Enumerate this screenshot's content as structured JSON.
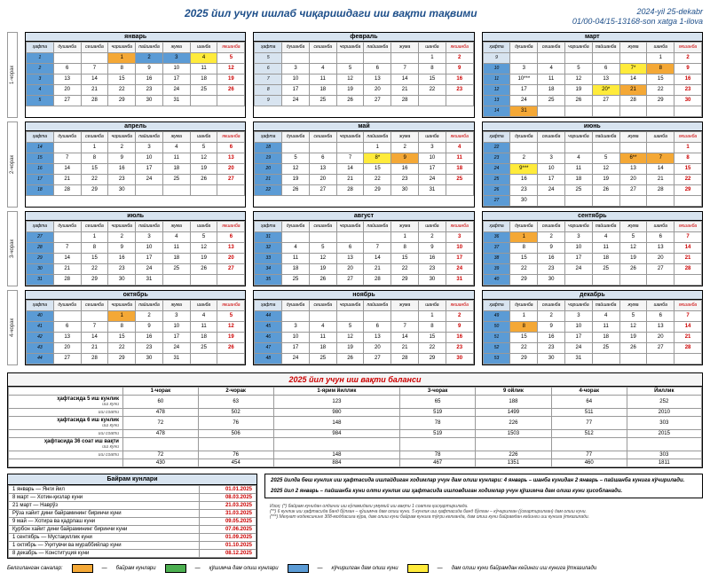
{
  "title": "2025 йил учун ишлаб чиқаришдаги иш вақти тақвими",
  "ref1": "2024-yil 25-dekabr",
  "ref2": "01/00-04/15-13168-son xatga 1-ilova",
  "weekdays": [
    "ҳафта",
    "душанба",
    "сешанба",
    "чоршанба",
    "пайшанба",
    "жума",
    "шанба",
    "якшанба"
  ],
  "q": [
    "1-чорак",
    "2-чорак",
    "3-чорак",
    "4-чорак"
  ],
  "months": [
    {
      "name": "январь",
      "weeks": [
        [
          "1",
          "",
          "",
          "1",
          "2",
          "3",
          "4",
          "5"
        ],
        [
          "2",
          "6",
          "7",
          "8",
          "9",
          "10",
          "11",
          "12"
        ],
        [
          "3",
          "13",
          "14",
          "15",
          "16",
          "17",
          "18",
          "19"
        ],
        [
          "4",
          "20",
          "21",
          "22",
          "23",
          "24",
          "25",
          "26"
        ],
        [
          "5",
          "27",
          "28",
          "29",
          "30",
          "31",
          "",
          ""
        ]
      ],
      "red": [
        "5",
        "12",
        "19",
        "26"
      ],
      "hl": {
        "1": "orange",
        "2": "blue",
        "3": "blue",
        "4": "yellow"
      },
      "wk_hl": {
        "1": "blue",
        "2": "blue",
        "3": "blue",
        "4": "blue",
        "5": "blue"
      }
    },
    {
      "name": "февраль",
      "weeks": [
        [
          "5",
          "",
          "",
          "",
          "",
          "",
          "1",
          "2"
        ],
        [
          "6",
          "3",
          "4",
          "5",
          "6",
          "7",
          "8",
          "9"
        ],
        [
          "7",
          "10",
          "11",
          "12",
          "13",
          "14",
          "15",
          "16"
        ],
        [
          "8",
          "17",
          "18",
          "19",
          "20",
          "21",
          "22",
          "23"
        ],
        [
          "9",
          "24",
          "25",
          "26",
          "27",
          "28",
          "",
          ""
        ]
      ],
      "red": [
        "2",
        "9",
        "16",
        "23"
      ],
      "hl": {},
      "wk_hl": {}
    },
    {
      "name": "март",
      "weeks": [
        [
          "9",
          "",
          "",
          "",
          "",
          "",
          "1",
          "2"
        ],
        [
          "10",
          "3",
          "4",
          "5",
          "6",
          "7*",
          "8",
          "9"
        ],
        [
          "11",
          "10***",
          "11",
          "12",
          "13",
          "14",
          "15",
          "16"
        ],
        [
          "12",
          "17",
          "18",
          "19",
          "20*",
          "21",
          "22",
          "23"
        ],
        [
          "13",
          "24",
          "25",
          "26",
          "27",
          "28",
          "29",
          "30"
        ],
        [
          "14",
          "31",
          "",
          "",
          "",
          "",
          "",
          ""
        ]
      ],
      "red": [
        "2",
        "9",
        "16",
        "23",
        "30"
      ],
      "hl": {
        "8": "orange",
        "21": "orange",
        "31": "orange",
        "7*": "yellow",
        "20*": "yellow"
      },
      "wk_hl": {
        "10": "blue",
        "11": "blue",
        "12": "blue",
        "13": "blue",
        "14": "blue"
      }
    },
    {
      "name": "апрель",
      "weeks": [
        [
          "14",
          "",
          "1",
          "2",
          "3",
          "4",
          "5",
          "6"
        ],
        [
          "15",
          "7",
          "8",
          "9",
          "10",
          "11",
          "12",
          "13"
        ],
        [
          "16",
          "14",
          "15",
          "16",
          "17",
          "18",
          "19",
          "20"
        ],
        [
          "17",
          "21",
          "22",
          "23",
          "24",
          "25",
          "26",
          "27"
        ],
        [
          "18",
          "28",
          "29",
          "30",
          "",
          "",
          "",
          ""
        ]
      ],
      "red": [
        "6",
        "13",
        "20",
        "27"
      ],
      "hl": {},
      "wk_hl": {
        "14": "blue",
        "15": "blue",
        "16": "blue",
        "17": "blue",
        "18": "blue"
      }
    },
    {
      "name": "май",
      "weeks": [
        [
          "18",
          "",
          "",
          "",
          "1",
          "2",
          "3",
          "4"
        ],
        [
          "19",
          "5",
          "6",
          "7",
          "8*",
          "9",
          "10",
          "11"
        ],
        [
          "20",
          "12",
          "13",
          "14",
          "15",
          "16",
          "17",
          "18"
        ],
        [
          "21",
          "19",
          "20",
          "21",
          "22",
          "23",
          "24",
          "25"
        ],
        [
          "22",
          "26",
          "27",
          "28",
          "29",
          "30",
          "31",
          ""
        ]
      ],
      "red": [
        "4",
        "11",
        "18",
        "25"
      ],
      "hl": {
        "9": "orange",
        "8*": "yellow"
      },
      "wk_hl": {
        "18": "blue",
        "19": "blue",
        "20": "blue",
        "21": "blue",
        "22": "blue"
      }
    },
    {
      "name": "июнь",
      "weeks": [
        [
          "22",
          "",
          "",
          "",
          "",
          "",
          "",
          "1"
        ],
        [
          "23",
          "2",
          "3",
          "4",
          "5",
          "6**",
          "7",
          "8"
        ],
        [
          "24",
          "9***",
          "10",
          "11",
          "12",
          "13",
          "14",
          "15"
        ],
        [
          "25",
          "16",
          "17",
          "18",
          "19",
          "20",
          "21",
          "22"
        ],
        [
          "26",
          "23",
          "24",
          "25",
          "26",
          "27",
          "28",
          "29"
        ],
        [
          "27",
          "30",
          "",
          "",
          "",
          "",
          "",
          ""
        ]
      ],
      "red": [
        "1",
        "8",
        "15",
        "22",
        "29"
      ],
      "hl": {
        "6**": "orange",
        "7": "orange",
        "9***": "yellow"
      },
      "wk_hl": {
        "22": "blue",
        "23": "blue",
        "24": "blue",
        "25": "blue",
        "26": "blue",
        "27": "blue"
      }
    },
    {
      "name": "июль",
      "weeks": [
        [
          "27",
          "",
          "1",
          "2",
          "3",
          "4",
          "5",
          "6"
        ],
        [
          "28",
          "7",
          "8",
          "9",
          "10",
          "11",
          "12",
          "13"
        ],
        [
          "29",
          "14",
          "15",
          "16",
          "17",
          "18",
          "19",
          "20"
        ],
        [
          "30",
          "21",
          "22",
          "23",
          "24",
          "25",
          "26",
          "27"
        ],
        [
          "31",
          "28",
          "29",
          "30",
          "31",
          "",
          "",
          ""
        ]
      ],
      "red": [
        "6",
        "13",
        "20",
        "27"
      ],
      "hl": {},
      "wk_hl": {
        "27": "blue",
        "28": "blue",
        "29": "blue",
        "30": "blue",
        "31": "blue"
      }
    },
    {
      "name": "август",
      "weeks": [
        [
          "31",
          "",
          "",
          "",
          "",
          "1",
          "2",
          "3"
        ],
        [
          "32",
          "4",
          "5",
          "6",
          "7",
          "8",
          "9",
          "10"
        ],
        [
          "33",
          "11",
          "12",
          "13",
          "14",
          "15",
          "16",
          "17"
        ],
        [
          "34",
          "18",
          "19",
          "20",
          "21",
          "22",
          "23",
          "24"
        ],
        [
          "35",
          "25",
          "26",
          "27",
          "28",
          "29",
          "30",
          "31"
        ]
      ],
      "red": [
        "3",
        "10",
        "17",
        "24",
        "31"
      ],
      "hl": {},
      "wk_hl": {
        "31": "blue",
        "32": "blue",
        "33": "blue",
        "34": "blue",
        "35": "blue"
      }
    },
    {
      "name": "сентябрь",
      "weeks": [
        [
          "36",
          "1",
          "2",
          "3",
          "4",
          "5",
          "6",
          "7"
        ],
        [
          "37",
          "8",
          "9",
          "10",
          "11",
          "12",
          "13",
          "14"
        ],
        [
          "38",
          "15",
          "16",
          "17",
          "18",
          "19",
          "20",
          "21"
        ],
        [
          "39",
          "22",
          "23",
          "24",
          "25",
          "26",
          "27",
          "28"
        ],
        [
          "40",
          "29",
          "30",
          "",
          "",
          "",
          "",
          ""
        ]
      ],
      "red": [
        "7",
        "14",
        "21",
        "28"
      ],
      "hl": {
        "1": "orange"
      },
      "wk_hl": {
        "36": "blue",
        "37": "blue",
        "38": "blue",
        "39": "blue",
        "40": "blue"
      }
    },
    {
      "name": "октябрь",
      "weeks": [
        [
          "40",
          "",
          "",
          "1",
          "2",
          "3",
          "4",
          "5"
        ],
        [
          "41",
          "6",
          "7",
          "8",
          "9",
          "10",
          "11",
          "12"
        ],
        [
          "42",
          "13",
          "14",
          "15",
          "16",
          "17",
          "18",
          "19"
        ],
        [
          "43",
          "20",
          "21",
          "22",
          "23",
          "24",
          "25",
          "26"
        ],
        [
          "44",
          "27",
          "28",
          "29",
          "30",
          "31",
          "",
          ""
        ]
      ],
      "red": [
        "5",
        "12",
        "19",
        "26"
      ],
      "hl": {
        "1": "orange"
      },
      "wk_hl": {
        "40": "blue",
        "41": "blue",
        "42": "blue",
        "43": "blue",
        "44": "blue"
      }
    },
    {
      "name": "ноябрь",
      "weeks": [
        [
          "44",
          "",
          "",
          "",
          "",
          "",
          "1",
          "2"
        ],
        [
          "45",
          "3",
          "4",
          "5",
          "6",
          "7",
          "8",
          "9"
        ],
        [
          "46",
          "10",
          "11",
          "12",
          "13",
          "14",
          "15",
          "16"
        ],
        [
          "47",
          "17",
          "18",
          "19",
          "20",
          "21",
          "22",
          "23"
        ],
        [
          "48",
          "24",
          "25",
          "26",
          "27",
          "28",
          "29",
          "30"
        ]
      ],
      "red": [
        "2",
        "9",
        "16",
        "23",
        "30"
      ],
      "hl": {},
      "wk_hl": {
        "44": "blue",
        "45": "blue",
        "46": "blue",
        "47": "blue",
        "48": "blue"
      }
    },
    {
      "name": "декабрь",
      "weeks": [
        [
          "49",
          "1",
          "2",
          "3",
          "4",
          "5",
          "6",
          "7"
        ],
        [
          "50",
          "8",
          "9",
          "10",
          "11",
          "12",
          "13",
          "14"
        ],
        [
          "51",
          "15",
          "16",
          "17",
          "18",
          "19",
          "20",
          "21"
        ],
        [
          "52",
          "22",
          "23",
          "24",
          "25",
          "26",
          "27",
          "28"
        ],
        [
          "53",
          "29",
          "30",
          "31",
          "",
          "",
          "",
          ""
        ]
      ],
      "red": [
        "7",
        "14",
        "21",
        "28"
      ],
      "hl": {
        "8": "orange"
      },
      "wk_hl": {
        "49": "blue",
        "50": "blue",
        "51": "blue",
        "52": "blue",
        "53": "blue"
      }
    }
  ],
  "balance": {
    "title": "2025 йил учун иш вақти баланси",
    "cols": [
      "",
      "1-чорак",
      "2-чорак",
      "1-ярим йиллик",
      "3-чорак",
      "9 ойлик",
      "4-чорак",
      "Йиллик"
    ],
    "groups": [
      {
        "h": "ҳафтасида 5 иш кунлик",
        "sub": [
          {
            "n": "иш куни",
            "v": [
              "60",
              "63",
              "123",
              "65",
              "188",
              "64",
              "252"
            ]
          },
          {
            "n": "иш соати",
            "v": [
              "478",
              "502",
              "980",
              "519",
              "1499",
              "511",
              "2010"
            ]
          }
        ]
      },
      {
        "h": "ҳафтасида 6 иш кунлик",
        "sub": [
          {
            "n": "иш куни",
            "v": [
              "72",
              "76",
              "148",
              "78",
              "226",
              "77",
              "303"
            ]
          },
          {
            "n": "иш соати",
            "v": [
              "478",
              "506",
              "984",
              "519",
              "1503",
              "512",
              "2015"
            ]
          }
        ]
      },
      {
        "h": "ҳафтасида 36 соат иш вақти",
        "sub": [
          {
            "n": "иш куни",
            "v": [
              "",
              "",
              "",
              "",
              "",
              "",
              ""
            ]
          },
          {
            "n": "иш соати",
            "v": [
              "72",
              "76",
              "148",
              "78",
              "226",
              "77",
              "303"
            ]
          },
          {
            "n": "",
            "v": [
              "430",
              "454",
              "884",
              "467",
              "1351",
              "460",
              "1811"
            ]
          }
        ]
      }
    ]
  },
  "holidays": {
    "title": "Байрам кунлари",
    "rows": [
      [
        "1 январь — Янги йил",
        "01.01.2025"
      ],
      [
        "8 март — Хотин-қизлар куни",
        "08.03.2025"
      ],
      [
        "21 март — Наврўз",
        "21.03.2025"
      ],
      [
        "Рўза хайит дини байрамининг биринчи куни",
        "31.03.2025"
      ],
      [
        "9 май — Хотира ва қадрлаш куни",
        "09.05.2025"
      ],
      [
        "Қурбон хайит дини байрамининг биринчи куни",
        "07.06.2025"
      ],
      [
        "1 сентябрь — Мустақиллик куни",
        "01.09.2025"
      ],
      [
        "1 октябрь — Ўқитувчи ва мураббийлар куни",
        "01.10.2025"
      ],
      [
        "8 декабрь — Конституция куни",
        "08.12.2025"
      ]
    ]
  },
  "note1a": "2025 йилда беш кунлик иш ҳафтасида ишлайдиган ходимлар учун дам олиш кунлари: 4 январь – шанба кунидан 2 январь – пайшанба кунига кўчирилади.",
  "note1b": "2025 йил 2 январь – пайшанба куни олти кунлик иш ҳафтасида ишловдиган ходимлар учун қўшимча дам олиш куни ҳисобланади.",
  "foot_label": "Изоҳ:",
  "foot1": "(*) байрам кунидан олдинги иш кўламидаги умумий иш вақти 1 соатга қисқартирилади.",
  "foot2": "(**) 6 кунлик иш ҳафтасида банд бўлган – қўшимча дам олиш куни. 5 кунлик иш ҳафтасида банд бўлган – кўчирилган (ўзгартирилган) дам олиш куни.",
  "foot3": "(***) Меҳнат кодексининг 308-моддасига кўра, дам олиш куни байрам кунига тўғри келганда, дам олиш куни байрамдан кейинги иш кунига ўтказилади.",
  "legend_label": "Белгиланган саналар:",
  "legend": [
    {
      "c": "#f4a836",
      "t": "байрам кунлари"
    },
    {
      "c": "#4caf50",
      "t": "қўшимча дам олиш кунлари"
    },
    {
      "c": "#5b9bd5",
      "t": "кўчирилган дам олиш куни"
    },
    {
      "c": "#ffeb3b",
      "t": "дам олиш куни байрамдан кейинги иш кунига ўтказилади"
    }
  ]
}
